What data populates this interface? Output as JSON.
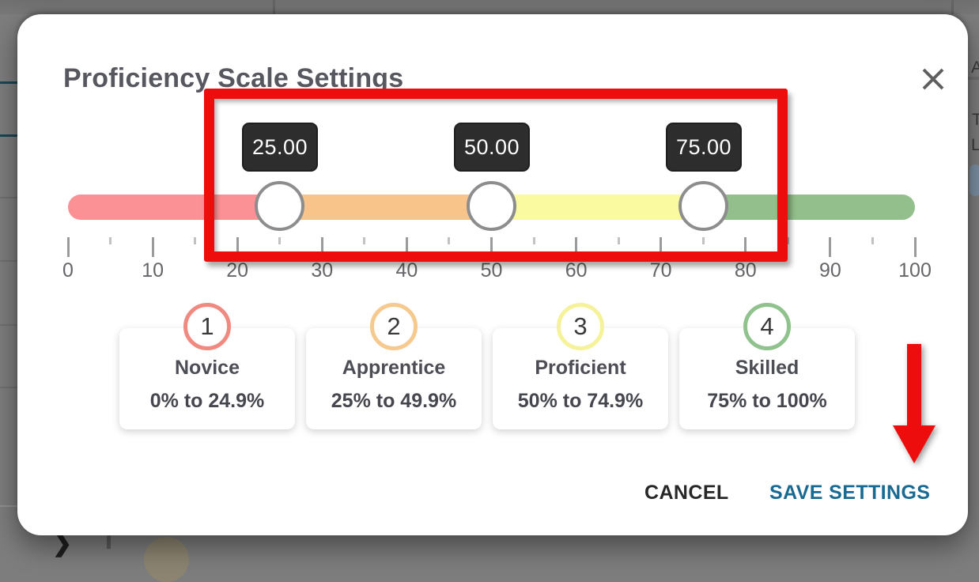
{
  "dialog": {
    "title": "Proficiency Scale Settings",
    "slider": {
      "handles": [
        {
          "value": 25,
          "value_label": "25.00"
        },
        {
          "value": 50,
          "value_label": "50.00"
        },
        {
          "value": 75,
          "value_label": "75.00"
        }
      ],
      "segments": [
        {
          "name": "novice",
          "from": 0,
          "to": 25,
          "color": "#fb9194"
        },
        {
          "name": "apprentice",
          "from": 25,
          "to": 50,
          "color": "#f9c489"
        },
        {
          "name": "proficient",
          "from": 50,
          "to": 75,
          "color": "#fafba1"
        },
        {
          "name": "skilled",
          "from": 75,
          "to": 100,
          "color": "#92bf8b"
        }
      ],
      "scale": {
        "min": 0,
        "max": 100,
        "major_step": 10,
        "minor_step": 5,
        "major_labels": [
          "0",
          "10",
          "20",
          "30",
          "40",
          "50",
          "60",
          "70",
          "80",
          "90",
          "100"
        ]
      }
    },
    "levels": [
      {
        "number": "1",
        "name": "Novice",
        "range": "0% to 24.9%",
        "badge_color": "#f0897f"
      },
      {
        "number": "2",
        "name": "Apprentice",
        "range": "25% to 49.9%",
        "badge_color": "#f6c98e"
      },
      {
        "number": "3",
        "name": "Proficient",
        "range": "50% to 74.9%",
        "badge_color": "#f6f29a"
      },
      {
        "number": "4",
        "name": "Skilled",
        "range": "75% to 100%",
        "badge_color": "#8fc28c"
      }
    ],
    "actions": {
      "cancel_label": "CANCEL",
      "save_label": "SAVE SETTINGS",
      "save_color": "#186a93"
    }
  },
  "annotations": {
    "highlight_color": "#ee0d0d"
  },
  "background": {
    "edge_texts": [
      "A",
      "T",
      "L"
    ]
  }
}
